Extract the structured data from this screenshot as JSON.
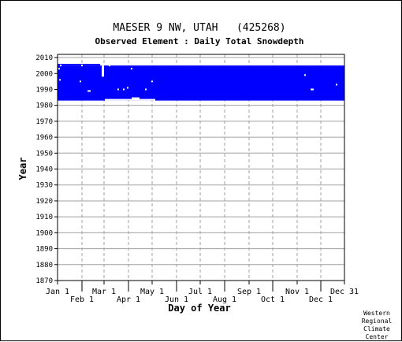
{
  "chart_data": {
    "type": "bar",
    "title": "MAESER 9 NW, UTAH   (425268)",
    "subtitle": "Observed Element : Daily Total Snowdepth",
    "xlabel": "Day of Year",
    "ylabel": "Year",
    "xlim": [
      1,
      365
    ],
    "ylim": [
      1870,
      2012
    ],
    "x_ticks": [
      {
        "label": "Jan 1",
        "day": 1,
        "row": "upper"
      },
      {
        "label": "Feb 1",
        "day": 32,
        "row": "lower"
      },
      {
        "label": "Mar 1",
        "day": 60,
        "row": "upper"
      },
      {
        "label": "Apr 1",
        "day": 91,
        "row": "lower"
      },
      {
        "label": "May 1",
        "day": 121,
        "row": "upper"
      },
      {
        "label": "Jun 1",
        "day": 152,
        "row": "lower"
      },
      {
        "label": "Jul 1",
        "day": 182,
        "row": "upper"
      },
      {
        "label": "Aug 1",
        "day": 213,
        "row": "lower"
      },
      {
        "label": "Sep 1",
        "day": 244,
        "row": "upper"
      },
      {
        "label": "Oct 1",
        "day": 274,
        "row": "lower"
      },
      {
        "label": "Nov 1",
        "day": 305,
        "row": "upper"
      },
      {
        "label": "Dec 1",
        "day": 335,
        "row": "lower"
      },
      {
        "label": "Dec 31",
        "day": 365,
        "row": "upper"
      }
    ],
    "y_ticks": [
      2010,
      2000,
      1990,
      1980,
      1970,
      1960,
      1950,
      1940,
      1930,
      1920,
      1910,
      1900,
      1890,
      1880,
      1870
    ],
    "grid": true,
    "series": [
      {
        "color": "#0000ff",
        "record_spans": [
          {
            "year_start": 1983,
            "year_end": 2005,
            "day_start": 1,
            "day_end": 365
          },
          {
            "year_start": 2005,
            "year_end": 2006,
            "day_start": 1,
            "day_end": 55
          }
        ],
        "missing_spans": [
          {
            "year_start": 1983,
            "year_end": 1984,
            "day_start": 61,
            "day_end": 125
          },
          {
            "year_start": 1984,
            "year_end": 1985,
            "day_start": 95,
            "day_end": 105
          },
          {
            "year_start": 1998,
            "year_end": 2005,
            "day_start": 57,
            "day_end": 60
          }
        ],
        "missing_points": [
          {
            "year": 2005,
            "day": 4
          },
          {
            "year": 2003,
            "day": 2
          },
          {
            "year": 1996,
            "day": 3
          },
          {
            "year": 2005,
            "day": 31
          },
          {
            "year": 1995,
            "day": 29
          },
          {
            "year": 1989,
            "day": 39
          },
          {
            "year": 1989,
            "day": 41
          },
          {
            "year": 2006,
            "day": 66
          },
          {
            "year": 2005,
            "day": 66
          },
          {
            "year": 1990,
            "day": 77
          },
          {
            "year": 1990,
            "day": 84
          },
          {
            "year": 1991,
            "day": 89
          },
          {
            "year": 2003,
            "day": 94
          },
          {
            "year": 1990,
            "day": 112
          },
          {
            "year": 1995,
            "day": 120
          },
          {
            "year": 1999,
            "day": 314
          },
          {
            "year": 1990,
            "day": 322
          },
          {
            "year": 1990,
            "day": 324
          },
          {
            "year": 1993,
            "day": 354
          }
        ]
      }
    ]
  },
  "credit": [
    "Western",
    "Regional",
    "Climate",
    "Center"
  ]
}
